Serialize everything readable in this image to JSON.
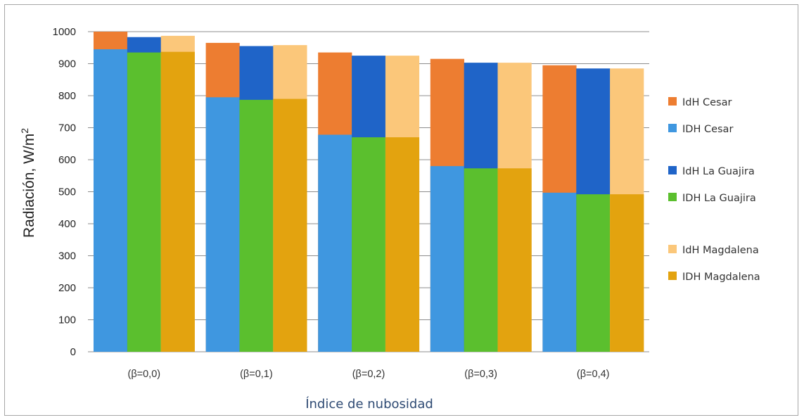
{
  "chart_data": {
    "type": "bar",
    "ylabel": "Radiación, W/m",
    "ylabel_superscript": "2",
    "xlabel": "Índice de nubosidad",
    "ylim": [
      0,
      1000
    ],
    "yticks": [
      "0",
      "100",
      "200",
      "300",
      "400",
      "500",
      "600",
      "700",
      "800",
      "900",
      "1000"
    ],
    "grid": true,
    "legend_position": "right",
    "categories": [
      "(β=0,0)",
      "(β=0,1)",
      "(β=0,2)",
      "(β=0,3)",
      "(β=0,4)"
    ],
    "groups": [
      {
        "back_name": "IdH Cesar",
        "front_name": "IDH Cesar",
        "back_values": [
          1000,
          965,
          935,
          915,
          895
        ],
        "front_values": [
          945,
          795,
          678,
          580,
          497
        ],
        "back_color": "#ed7d31",
        "front_color": "#3f97e0"
      },
      {
        "back_name": "IdH La Guajira",
        "front_name": "IDH La Guajira",
        "back_values": [
          983,
          955,
          925,
          903,
          885
        ],
        "front_values": [
          935,
          787,
          670,
          573,
          492
        ],
        "back_color": "#1f64c8",
        "front_color": "#5bbf2e"
      },
      {
        "back_name": "IdH Magdalena",
        "front_name": "IDH Magdalena",
        "back_values": [
          987,
          958,
          925,
          903,
          885
        ],
        "front_values": [
          937,
          790,
          670,
          573,
          492
        ],
        "back_color": "#fbc77a",
        "front_color": "#e3a30f"
      }
    ],
    "legend": [
      {
        "label": "IdH Cesar",
        "color": "#ed7d31"
      },
      {
        "label": "IDH Cesar",
        "color": "#3f97e0"
      },
      {
        "label": "IdH La Guajira",
        "color": "#1f64c8"
      },
      {
        "label": "IDH La Guajira",
        "color": "#5bbf2e"
      },
      {
        "label": "IdH Magdalena",
        "color": "#fbc77a"
      },
      {
        "label": "IDH Magdalena",
        "color": "#e3a30f"
      }
    ]
  }
}
